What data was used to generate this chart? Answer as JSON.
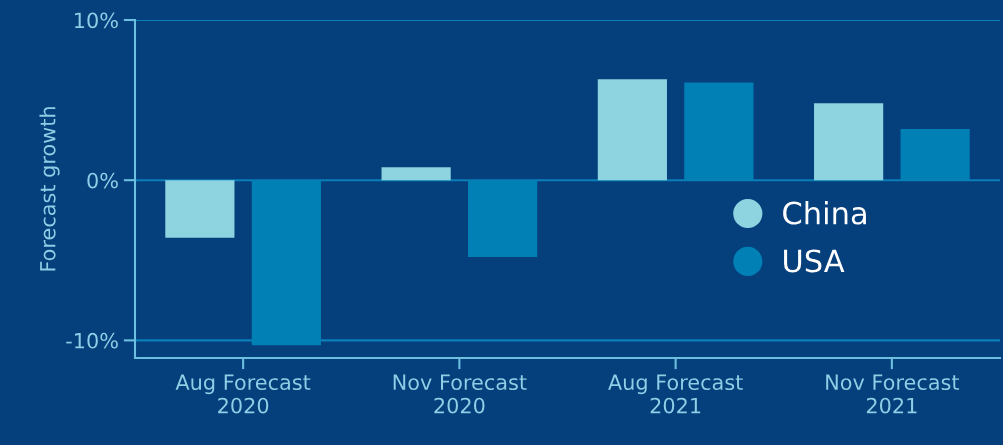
{
  "chart_data": {
    "type": "bar",
    "ylabel": "Forecast growth",
    "categories": [
      "Aug Forecast\n2020",
      "Nov Forecast\n2020",
      "Aug Forecast\n2021",
      "Nov Forecast\n2021"
    ],
    "series": [
      {
        "name": "China",
        "color": "#8dd3e0",
        "values": [
          -3.6,
          0.8,
          6.3,
          4.8
        ]
      },
      {
        "name": "USA",
        "color": "#0080b5",
        "values": [
          -10.3,
          -4.8,
          6.1,
          3.2
        ]
      }
    ],
    "ylim": [
      -11.1,
      10
    ],
    "yticks": [
      {
        "value": 10,
        "label": "10%"
      },
      {
        "value": 0,
        "label": "0%"
      },
      {
        "value": -10,
        "label": "-10%"
      }
    ],
    "grid": "y",
    "legend": "right",
    "marker": "circle"
  }
}
